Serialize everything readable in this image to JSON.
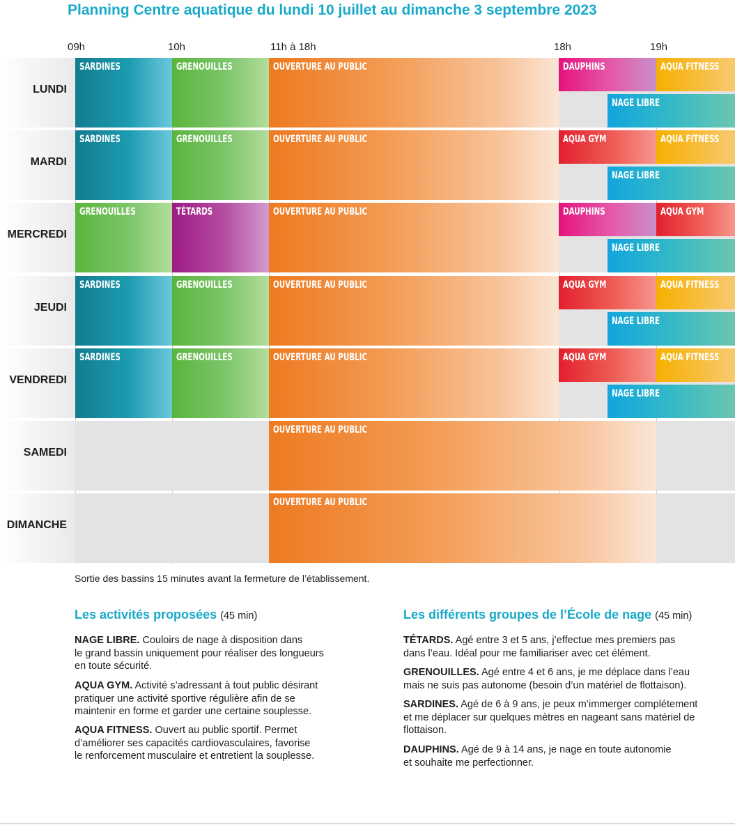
{
  "title": "Planning Centre aquatique du lundi 10 juillet au dimanche 3 septembre 2023",
  "time_labels": [
    "09h",
    "10h",
    "11h à 18h",
    "18h",
    "19h"
  ],
  "days": [
    {
      "label": "LUNDI",
      "blocks": [
        {
          "label": "SARDINES",
          "type": "sardines"
        },
        {
          "label": "GRENOUILLES",
          "type": "grenouilles"
        },
        {
          "label": "OUVERTURE AU PUBLIC",
          "type": "public"
        },
        {
          "label": "DAUPHINS",
          "type": "dauphins"
        },
        {
          "label": "AQUA FITNESS",
          "type": "fitness"
        },
        {
          "label": "NAGE LIBRE",
          "type": "nage"
        }
      ]
    },
    {
      "label": "MARDI",
      "blocks": [
        {
          "label": "SARDINES",
          "type": "sardines"
        },
        {
          "label": "GRENOUILLES",
          "type": "grenouilles"
        },
        {
          "label": "OUVERTURE AU PUBLIC",
          "type": "public"
        },
        {
          "label": "AQUA GYM",
          "type": "aquagym"
        },
        {
          "label": "AQUA FITNESS",
          "type": "fitness"
        },
        {
          "label": "NAGE LIBRE",
          "type": "nage"
        }
      ]
    },
    {
      "label": "MERCREDI",
      "blocks": [
        {
          "label": "GRENOUILLES",
          "type": "grenouilles"
        },
        {
          "label": "TÉTARDS",
          "type": "tetards"
        },
        {
          "label": "OUVERTURE AU PUBLIC",
          "type": "public"
        },
        {
          "label": "DAUPHINS",
          "type": "dauphins"
        },
        {
          "label": "AQUA GYM",
          "type": "aquagym"
        },
        {
          "label": "NAGE LIBRE",
          "type": "nage"
        }
      ]
    },
    {
      "label": "JEUDI",
      "blocks": [
        {
          "label": "SARDINES",
          "type": "sardines"
        },
        {
          "label": "GRENOUILLES",
          "type": "grenouilles"
        },
        {
          "label": "OUVERTURE AU PUBLIC",
          "type": "public"
        },
        {
          "label": "AQUA GYM",
          "type": "aquagym"
        },
        {
          "label": "AQUA FITNESS",
          "type": "fitness"
        },
        {
          "label": "NAGE LIBRE",
          "type": "nage"
        }
      ]
    },
    {
      "label": "VENDREDI",
      "blocks": [
        {
          "label": "SARDINES",
          "type": "sardines"
        },
        {
          "label": "GRENOUILLES",
          "type": "grenouilles"
        },
        {
          "label": "OUVERTURE AU PUBLIC",
          "type": "public"
        },
        {
          "label": "AQUA GYM",
          "type": "aquagym"
        },
        {
          "label": "AQUA FITNESS",
          "type": "fitness"
        },
        {
          "label": "NAGE LIBRE",
          "type": "nage"
        }
      ]
    },
    {
      "label": "SAMEDI",
      "blocks": [
        {
          "label": "OUVERTURE AU PUBLIC",
          "type": "public"
        }
      ]
    },
    {
      "label": "DIMANCHE",
      "blocks": [
        {
          "label": "OUVERTURE AU PUBLIC",
          "type": "public"
        }
      ]
    }
  ],
  "note": "Sortie des bassins 15 minutes avant la fermeture de l’établissement.",
  "activities": {
    "title": "Les activités proposées",
    "duration": "(45 min)",
    "items": [
      {
        "name": "NAGE LIBRE.",
        "lines": [
          "Couloirs de nage à disposition dans",
          "le grand bassin uniquement pour réaliser des longueurs",
          "en toute sécurité."
        ]
      },
      {
        "name": "AQUA GYM.",
        "lines": [
          "Activité s’adressant à tout public désirant",
          "pratiquer une activité sportive régulière afin de se",
          "maintenir en forme et garder une certaine souplesse."
        ]
      },
      {
        "name": "AQUA FITNESS.",
        "lines": [
          "Ouvert au public sportif. Permet",
          "d’améliorer ses capacités cardiovasculaires, favorise",
          "le renforcement musculaire et entretient la souplesse."
        ]
      }
    ]
  },
  "groups": {
    "title": "Les différents groupes de l’École de nage",
    "duration": "(45 min)",
    "items": [
      {
        "name": "TÉTARDS.",
        "lines": [
          "Agé entre 3 et 5 ans, j’effectue mes premiers pas",
          "dans l’eau. Idéal pour me familiariser avec cet élément."
        ]
      },
      {
        "name": "GRENOUILLES.",
        "lines": [
          "Agé entre 4 et 6 ans, je me déplace dans l’eau",
          "mais ne suis pas autonome (besoin d’un matériel de flottaison)."
        ]
      },
      {
        "name": "SARDINES.",
        "lines": [
          "Agé de 6 à 9 ans, je peux m’immerger complétement",
          "et me déplacer sur quelques mètres en nageant sans matériel de",
          "flottaison."
        ]
      },
      {
        "name": "DAUPHINS.",
        "lines": [
          "Agé de 9 à 14 ans, je nage en toute autonomie",
          "et souhaite me perfectionner."
        ]
      }
    ]
  }
}
